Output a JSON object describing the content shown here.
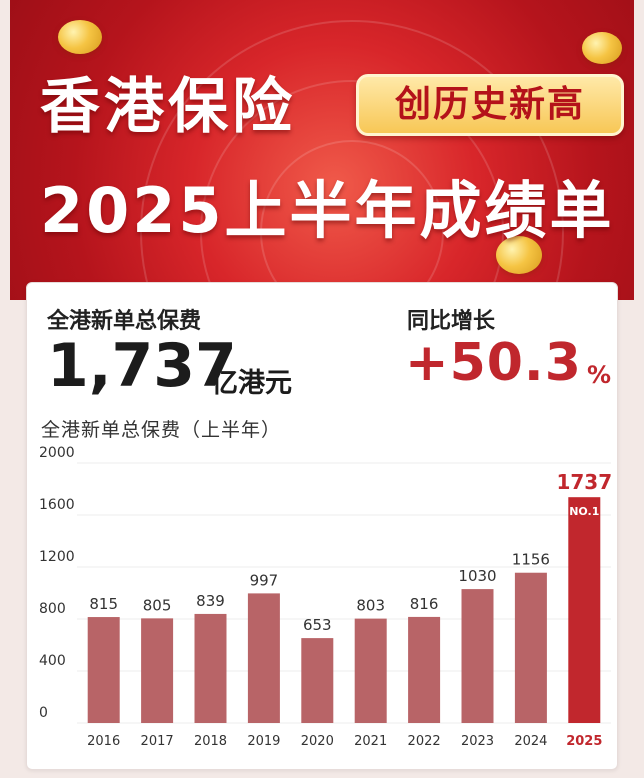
{
  "banner": {
    "title_line1": "香港保险",
    "badge": "创历史新高",
    "title_line2": "2025上半年成绩单"
  },
  "stats": {
    "total_label": "全港新单总保费",
    "total_value": "1,737",
    "total_unit": "亿港元",
    "growth_label": "同比增长",
    "growth_value": "+50.3",
    "growth_unit": "%"
  },
  "chart_data": {
    "type": "bar",
    "title": "全港新单总保费（上半年）",
    "categories": [
      "2016",
      "2017",
      "2018",
      "2019",
      "2020",
      "2021",
      "2022",
      "2023",
      "2024",
      "2025"
    ],
    "values": [
      815,
      805,
      839,
      997,
      653,
      803,
      816,
      1030,
      1156,
      1737
    ],
    "ylim": [
      0,
      2000
    ],
    "yticks": [
      0,
      400,
      800,
      1200,
      1600,
      2000
    ],
    "highlight": {
      "category": "2025",
      "badge": "NO.1"
    },
    "grid": true,
    "colors": {
      "bar": "#b86467",
      "highlight": "#c1272d"
    }
  }
}
